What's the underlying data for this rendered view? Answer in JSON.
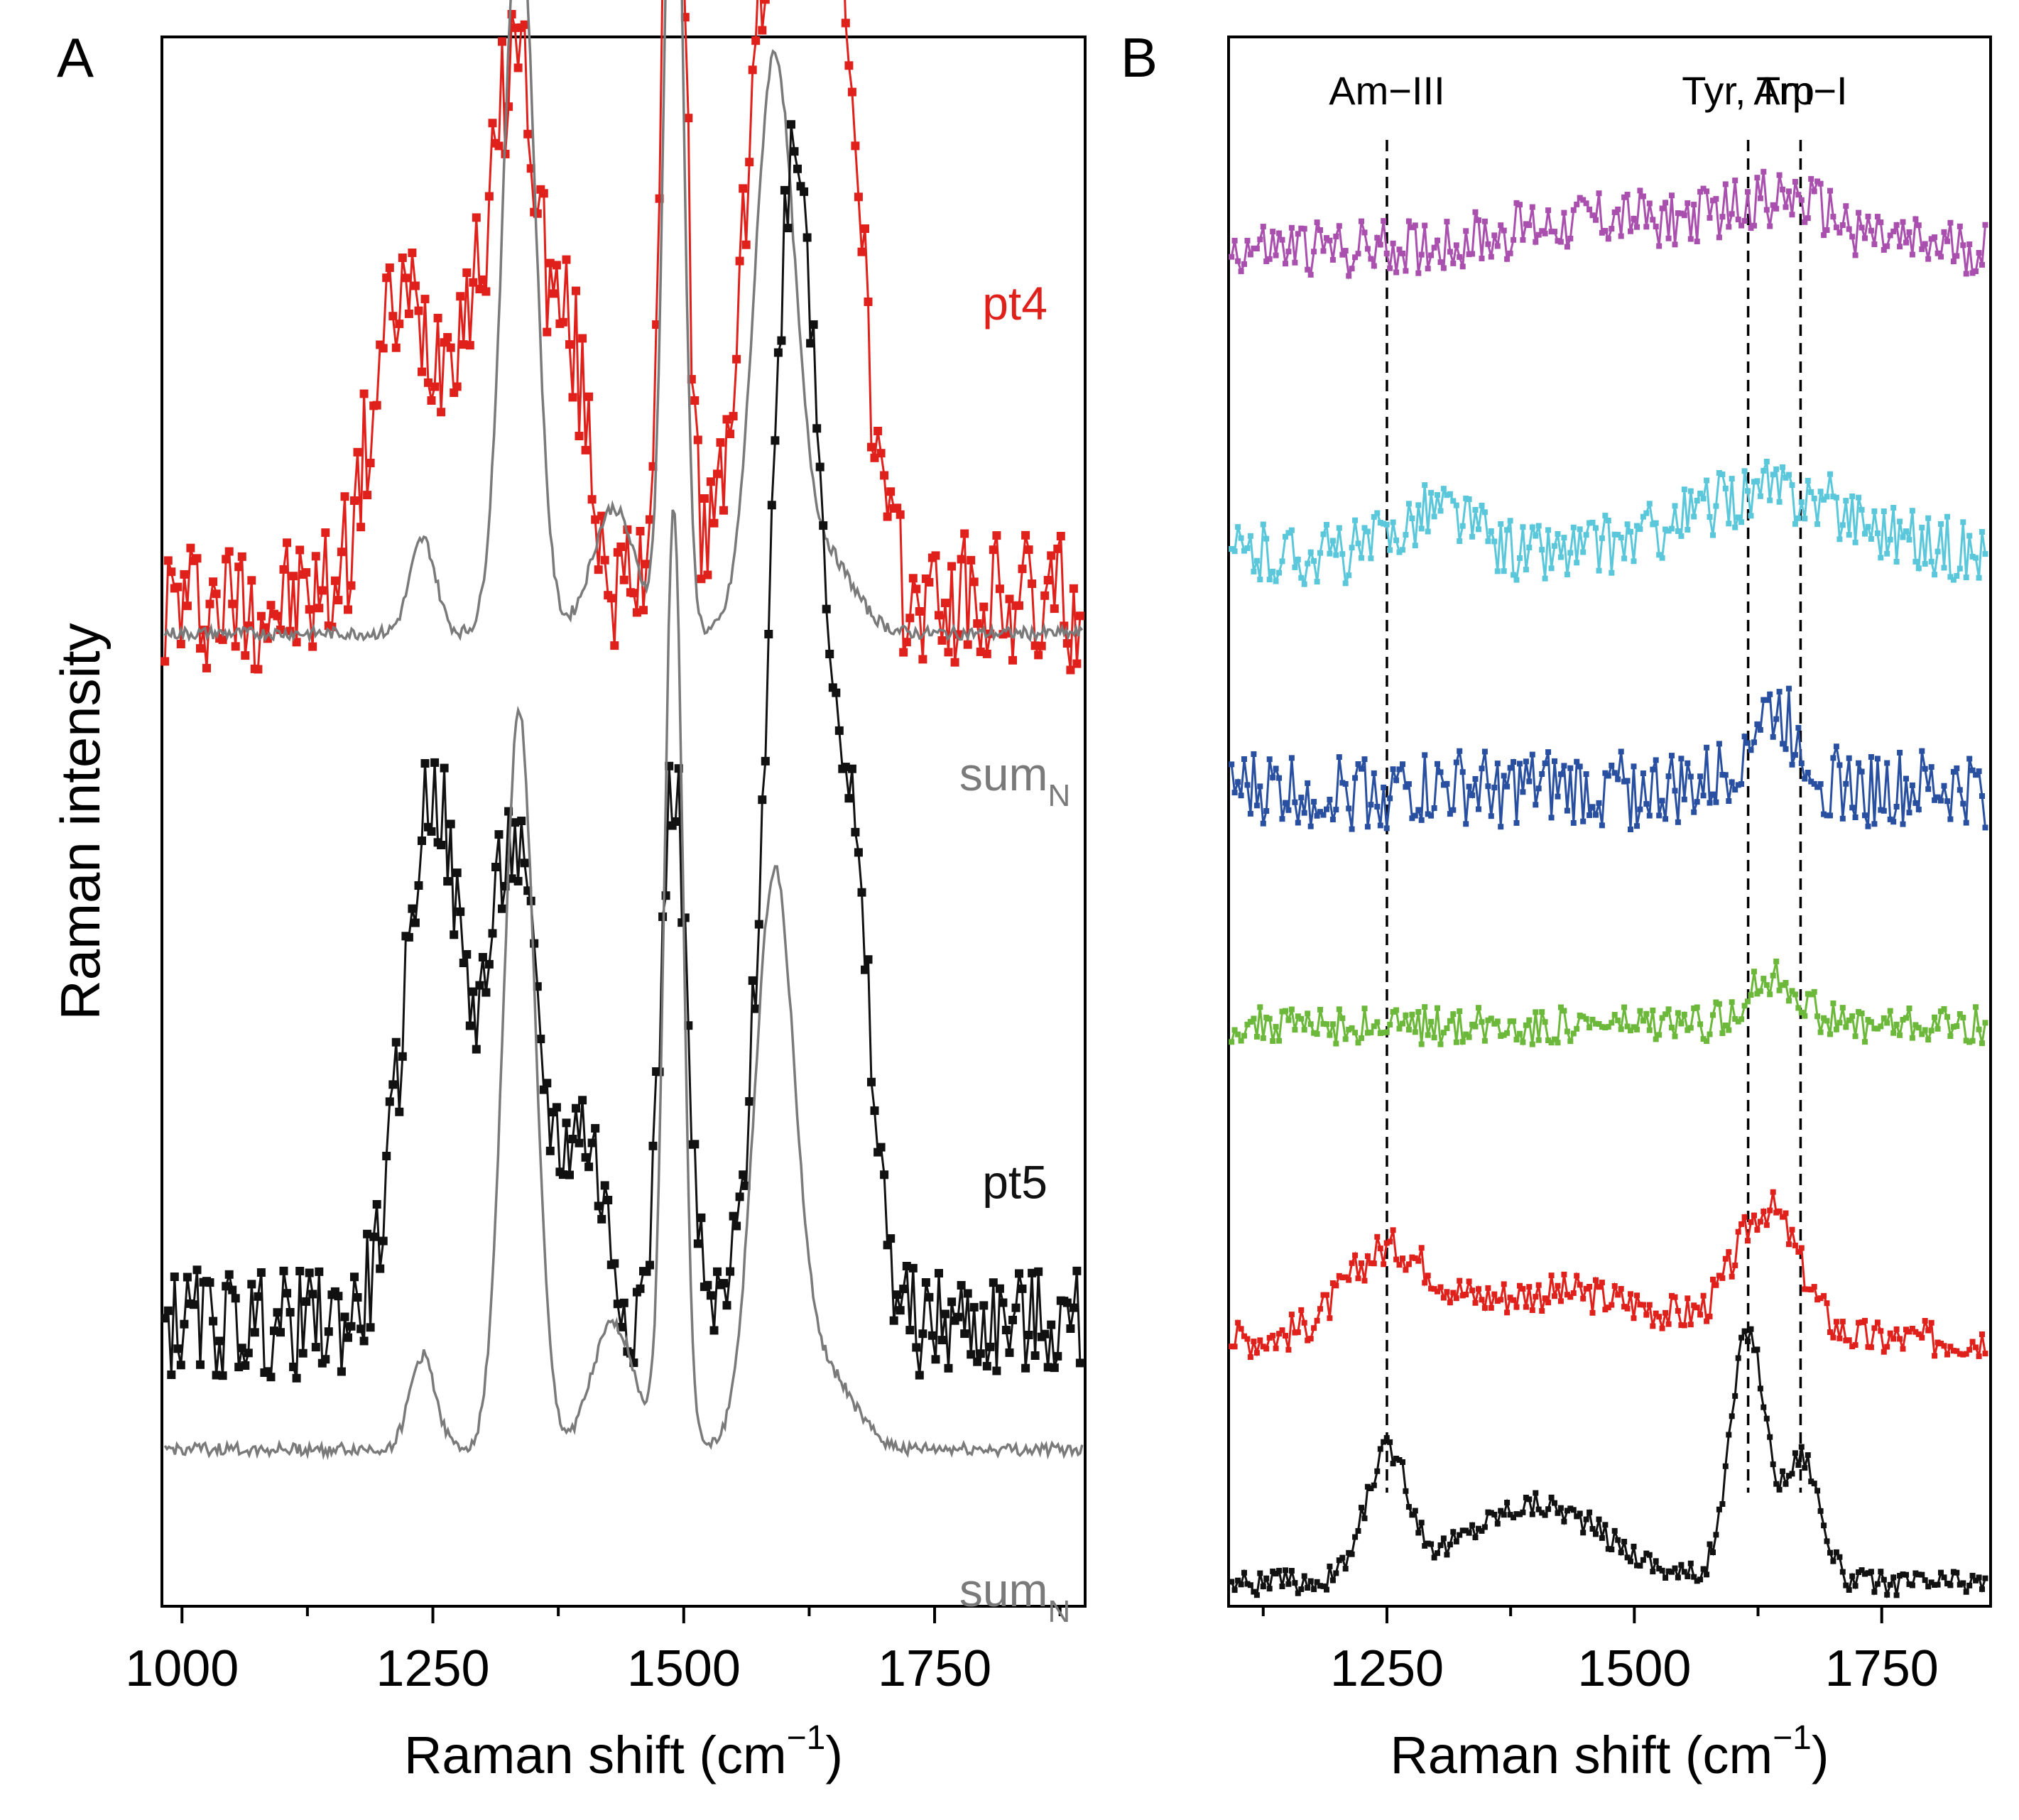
{
  "chart_data": [
    {
      "panel_label": "A",
      "type": "line",
      "xlabel": "Raman shift (cm",
      "xlabel_sup": "−1",
      "xlabel_end": ")",
      "ylabel": "Raman intensity",
      "xlim": [
        980,
        1900
      ],
      "xticks": [
        "1000",
        "1250",
        "1500",
        "1750"
      ],
      "y_ticks_shown": false,
      "series": [
        {
          "name": "pt4",
          "color": "#e0201b",
          "marker": "square",
          "kind": "data",
          "offset": 0.62,
          "label": "pt4",
          "label_x": 1830,
          "label_y_rel": 0.2,
          "baseline": 0.02,
          "peaks": [
            {
              "center": 1215,
              "height": 0.18,
              "width": 40
            },
            {
              "center": 1290,
              "height": 0.18,
              "width": 45
            },
            {
              "center": 1336,
              "height": 0.28,
              "width": 28
            },
            {
              "center": 1385,
              "height": 0.16,
              "width": 30
            },
            {
              "center": 1490,
              "height": 0.62,
              "width": 16
            },
            {
              "center": 1590,
              "height": 0.42,
              "width": 40
            },
            {
              "center": 1650,
              "height": 0.42,
              "width": 35
            }
          ],
          "noise": 0.045
        },
        {
          "name": "sum_N (pt4)",
          "color": "#7a7a7a",
          "marker": "none",
          "kind": "line",
          "offset": 0.62,
          "label": "sum",
          "label_sub": "N",
          "label_x": 1830,
          "label_y_rel": -0.1,
          "baseline": 0.0,
          "peaks": [
            {
              "center": 1240,
              "height": 0.06,
              "width": 18
            },
            {
              "center": 1336,
              "height": 0.47,
              "width": 22
            },
            {
              "center": 1430,
              "height": 0.08,
              "width": 30
            },
            {
              "center": 1490,
              "height": 0.6,
              "width": 13
            },
            {
              "center": 1590,
              "height": 0.36,
              "width": 28
            },
            {
              "center": 1640,
              "height": 0.05,
              "width": 40
            }
          ],
          "noise": 0.004
        },
        {
          "name": "pt5",
          "color": "#111111",
          "marker": "square",
          "kind": "data",
          "offset": 0.1,
          "label": "pt5",
          "label_x": 1830,
          "label_y_rel": 0.16,
          "baseline": 0.08,
          "peaks": [
            {
              "center": 1250,
              "height": 0.34,
              "width": 40
            },
            {
              "center": 1330,
              "height": 0.3,
              "width": 35
            },
            {
              "center": 1400,
              "height": 0.12,
              "width": 30
            },
            {
              "center": 1490,
              "height": 0.35,
              "width": 18
            },
            {
              "center": 1610,
              "height": 0.75,
              "width": 35
            },
            {
              "center": 1665,
              "height": 0.28,
              "width": 30
            }
          ],
          "noise": 0.035
        },
        {
          "name": "sum_N (pt5)",
          "color": "#7a7a7a",
          "marker": "none",
          "kind": "line",
          "offset": 0.1,
          "label": "sum",
          "label_sub": "N",
          "label_x": 1830,
          "label_y_rel": -0.1,
          "baseline": 0.0,
          "peaks": [
            {
              "center": 1240,
              "height": 0.06,
              "width": 18
            },
            {
              "center": 1336,
              "height": 0.47,
              "width": 22
            },
            {
              "center": 1430,
              "height": 0.08,
              "width": 30
            },
            {
              "center": 1490,
              "height": 0.6,
              "width": 13
            },
            {
              "center": 1590,
              "height": 0.36,
              "width": 28
            },
            {
              "center": 1640,
              "height": 0.05,
              "width": 40
            }
          ],
          "noise": 0.004
        }
      ]
    },
    {
      "panel_label": "B",
      "type": "line",
      "xlabel": "Raman shift (cm",
      "xlabel_sup": "−1",
      "xlabel_end": ")",
      "xlim": [
        1090,
        1860
      ],
      "xticks": [
        "1250",
        "1500",
        "1750"
      ],
      "y_ticks_shown": false,
      "vlines": [
        {
          "x": 1250,
          "label": "Am−III"
        },
        {
          "x": 1615,
          "label": "Tyr, Trp"
        },
        {
          "x": 1668,
          "label": "Am−I"
        }
      ],
      "series": [
        {
          "name": "magenta",
          "color": "#a94fae",
          "marker": "square",
          "offset": 0.865,
          "baseline": 0.0,
          "peaks": [
            {
              "center": 1470,
              "height": 0.02,
              "width": 120
            },
            {
              "center": 1650,
              "height": 0.03,
              "width": 80
            }
          ],
          "noise": 0.018
        },
        {
          "name": "cyan",
          "color": "#5bc7db",
          "marker": "square",
          "offset": 0.67,
          "baseline": 0.0,
          "peaks": [
            {
              "center": 1300,
              "height": 0.03,
              "width": 50
            },
            {
              "center": 1640,
              "height": 0.04,
              "width": 120
            }
          ],
          "noise": 0.02
        },
        {
          "name": "blue",
          "color": "#284fa0",
          "marker": "square",
          "offset": 0.52,
          "baseline": 0.0,
          "peaks": [
            {
              "center": 1640,
              "height": 0.05,
              "width": 40
            }
          ],
          "noise": 0.025
        },
        {
          "name": "green",
          "color": "#6cb83a",
          "marker": "square",
          "offset": 0.37,
          "baseline": 0.0,
          "peaks": [
            {
              "center": 1640,
              "height": 0.03,
              "width": 40
            }
          ],
          "noise": 0.012
        },
        {
          "name": "red",
          "color": "#e0201b",
          "marker": "square",
          "offset": 0.17,
          "baseline": 0.0,
          "peaks": [
            {
              "center": 1250,
              "height": 0.05,
              "width": 60
            },
            {
              "center": 1420,
              "height": 0.03,
              "width": 150
            },
            {
              "center": 1635,
              "height": 0.08,
              "width": 45
            }
          ],
          "noise": 0.012
        },
        {
          "name": "black",
          "color": "#111111",
          "marker": "square",
          "offset": 0.015,
          "baseline": 0.0,
          "peaks": [
            {
              "center": 1250,
              "height": 0.08,
              "width": 30
            },
            {
              "center": 1400,
              "height": 0.05,
              "width": 100
            },
            {
              "center": 1615,
              "height": 0.16,
              "width": 25
            },
            {
              "center": 1670,
              "height": 0.08,
              "width": 25
            }
          ],
          "noise": 0.008
        }
      ]
    }
  ]
}
